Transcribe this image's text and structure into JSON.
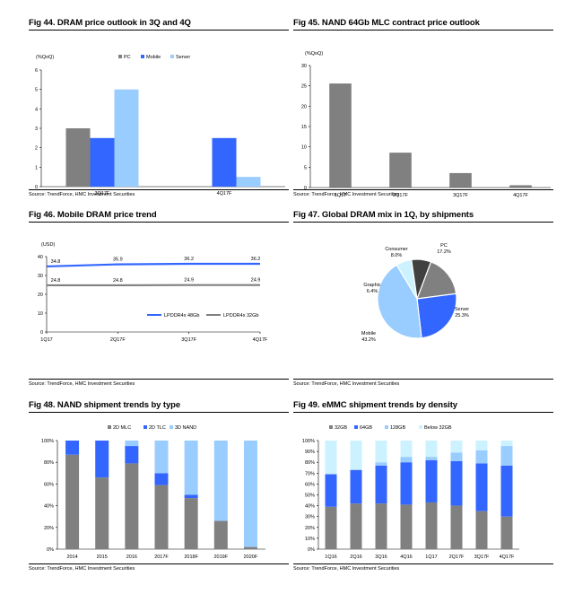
{
  "panels": [
    {
      "title": "Fig 44. DRAM price outlook in 3Q and 4Q",
      "source": "Source: TrendForce, HMC Investment Securities"
    },
    {
      "title": "Fig 45. NAND 64Gb MLC contract price outlook",
      "source": "Source: TrendForce, HMC Investment Securities"
    },
    {
      "title": "Fig 46. Mobile DRAM price trend",
      "source": "Source: TrendForce, HMC Investment Securities"
    },
    {
      "title": "Fig 47. Global DRAM mix in 1Q, by shipments",
      "source": "Source: TrendForce, HMC Investment Securities"
    },
    {
      "title": "Fig 48. NAND shipment trends by type",
      "source": "Source: TrendForce, HMC Investment Securities"
    },
    {
      "title": "Fig 49. eMMC shipment trends by density",
      "source": "Source: TrendForce, HMC Investment Securities"
    }
  ],
  "colors": {
    "gray": "#808080",
    "blue": "#3366ff",
    "light_blue": "#99ccff",
    "pale_blue": "#ccf2ff",
    "dark": "#404040"
  },
  "chart_data": [
    {
      "type": "bar",
      "unit_label": "(%QoQ)",
      "categories": [
        "3Q17F",
        "4Q17F"
      ],
      "series": [
        {
          "name": "PC",
          "values": [
            3,
            0
          ]
        },
        {
          "name": "Mobile",
          "values": [
            2.5,
            2.5
          ]
        },
        {
          "name": "Server",
          "values": [
            5,
            0.5
          ]
        }
      ],
      "ylim": [
        0,
        6
      ],
      "yticks": [
        0,
        1,
        2,
        3,
        4,
        5,
        6
      ],
      "legend": "top-center"
    },
    {
      "type": "bar",
      "unit_label": "(%QoQ)",
      "categories": [
        "1Q17",
        "2Q17F",
        "3Q17F",
        "4Q17F"
      ],
      "values": [
        25.5,
        8.5,
        3.5,
        0.5
      ],
      "ylim": [
        0,
        30
      ],
      "yticks": [
        0,
        5,
        10,
        15,
        20,
        25,
        30
      ]
    },
    {
      "type": "line",
      "unit_label": "(USD)",
      "categories": [
        "1Q17",
        "2Q17F",
        "3Q17F",
        "4Q17F"
      ],
      "series": [
        {
          "name": "LPDDR4x 48Gb",
          "values": [
            34.8,
            35.9,
            36.2,
            36.2
          ],
          "labels": [
            "34.8",
            "35.9",
            "36.2",
            "36.2"
          ]
        },
        {
          "name": "LPDDR4x 32Gb",
          "values": [
            24.8,
            24.8,
            24.9,
            24.9
          ],
          "labels": [
            "24.8",
            "24.8",
            "24.9",
            "24.9"
          ]
        }
      ],
      "ylim": [
        0,
        40
      ],
      "yticks": [
        0,
        10,
        20,
        30,
        40
      ],
      "legend": "bottom-right"
    },
    {
      "type": "pie",
      "slices": [
        {
          "name": "PC",
          "value": 17.2,
          "label": "17.2%"
        },
        {
          "name": "Server",
          "value": 25.3,
          "label": "25.3%"
        },
        {
          "name": "Mobile",
          "value": 43.2,
          "label": "43.2%"
        },
        {
          "name": "Graphic",
          "value": 6.4,
          "label": "6.4%"
        },
        {
          "name": "Consumer",
          "value": 8.0,
          "label": "8.0%"
        }
      ]
    },
    {
      "type": "bar",
      "stacked": true,
      "categories": [
        "2014",
        "2015",
        "2016",
        "2017F",
        "2018F",
        "2019F",
        "2020F"
      ],
      "series": [
        {
          "name": "2D MLC",
          "values": [
            87,
            66,
            79,
            59,
            47,
            26,
            2
          ]
        },
        {
          "name": "2D TLC",
          "values": [
            13,
            34,
            16,
            11,
            3,
            0,
            0
          ]
        },
        {
          "name": "3D NAND",
          "values": [
            0,
            0,
            5,
            30,
            50,
            74,
            98
          ]
        }
      ],
      "ylim": [
        0,
        100
      ],
      "yticks": [
        "0%",
        "20%",
        "40%",
        "60%",
        "80%",
        "100%"
      ],
      "legend": "top-center"
    },
    {
      "type": "bar",
      "stacked": true,
      "categories": [
        "1Q16",
        "2Q16",
        "3Q16",
        "4Q16",
        "1Q17",
        "2Q17F",
        "3Q17F",
        "4Q17F"
      ],
      "series": [
        {
          "name": "32GB",
          "values": [
            39,
            42,
            42,
            41,
            43,
            40,
            35,
            30
          ]
        },
        {
          "name": "64GB",
          "values": [
            30,
            31,
            35,
            39,
            39,
            41,
            44,
            47
          ]
        },
        {
          "name": "128GB",
          "values": [
            0,
            0,
            3,
            5,
            3,
            8,
            12,
            18
          ]
        },
        {
          "name": "Below 32GB",
          "values": [
            31,
            27,
            20,
            15,
            15,
            11,
            9,
            5
          ]
        }
      ],
      "ylim": [
        0,
        100
      ],
      "yticks": [
        "0%",
        "10%",
        "20%",
        "30%",
        "40%",
        "50%",
        "60%",
        "70%",
        "80%",
        "90%",
        "100%"
      ],
      "legend": "top-center"
    }
  ]
}
